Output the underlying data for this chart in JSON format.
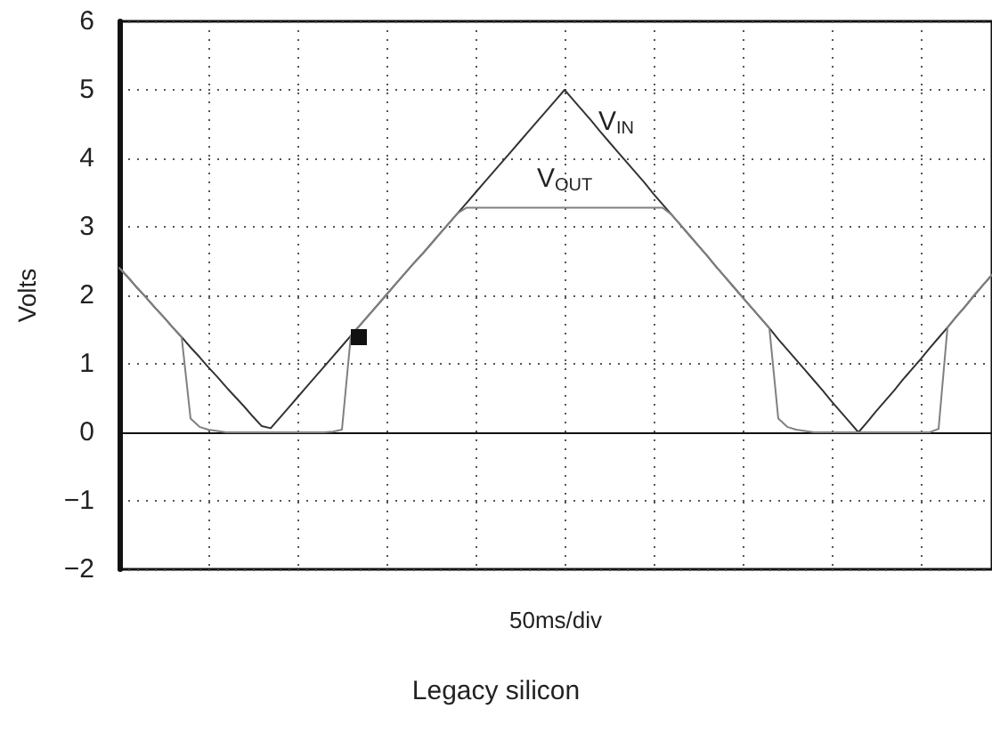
{
  "chart_data": {
    "type": "line",
    "title": "Legacy silicon",
    "xlabel": "50ms/div",
    "ylabel": "Volts",
    "categories": [
      null,
      null,
      null,
      null,
      null,
      null,
      null,
      null,
      null,
      null,
      null,
      null,
      null,
      null,
      null,
      null,
      null,
      null,
      null,
      null,
      null,
      null,
      null,
      null,
      null,
      null,
      null,
      null,
      null,
      null,
      null,
      null,
      null,
      null,
      null,
      null,
      null,
      null,
      null,
      null,
      null,
      null,
      null,
      null,
      null,
      null,
      null,
      null,
      null,
      null,
      null,
      null,
      null,
      null,
      null,
      null,
      null,
      null,
      null,
      null,
      null,
      null,
      null,
      null,
      null,
      null,
      null,
      null,
      null,
      null,
      null,
      null,
      null,
      null,
      null,
      null,
      null,
      null,
      null,
      null,
      null,
      null,
      null,
      null,
      null,
      null,
      null,
      null,
      null,
      null,
      null,
      null,
      null,
      null,
      null,
      null,
      null,
      null,
      null
    ],
    "ylim": [
      -2,
      6
    ],
    "yticks": [
      {
        "value": -2,
        "label": "−2"
      },
      {
        "value": -1,
        "label": "−1"
      },
      0,
      1,
      2,
      3,
      4,
      5,
      6
    ],
    "grid": true,
    "tick_labels": "y",
    "marker": "none",
    "line_style": "solid",
    "series": [
      {
        "name": "V$_{IN}$",
        "color": "#333333",
        "values": [
          2.4,
          2.26,
          2.11,
          1.97,
          1.82,
          1.68,
          1.53,
          1.39,
          1.24,
          1.1,
          0.95,
          0.81,
          0.66,
          0.52,
          0.38,
          0.23,
          0.09,
          0.06,
          0.21,
          0.36,
          0.51,
          0.66,
          0.81,
          0.96,
          1.11,
          1.26,
          1.41,
          1.56,
          1.71,
          1.86,
          2.01,
          2.16,
          2.31,
          2.46,
          2.6,
          2.75,
          2.9,
          3.05,
          3.2,
          3.35,
          3.5,
          3.65,
          3.8,
          3.95,
          4.1,
          4.25,
          4.4,
          4.55,
          4.7,
          4.85,
          5,
          4.85,
          4.7,
          4.55,
          4.39,
          4.24,
          4.09,
          3.94,
          3.79,
          3.64,
          3.48,
          3.33,
          3.18,
          3.03,
          2.88,
          2.73,
          2.58,
          2.42,
          2.27,
          2.12,
          1.97,
          1.82,
          1.67,
          1.52,
          1.36,
          1.21,
          1.06,
          0.91,
          0.76,
          0.61,
          0.45,
          0.3,
          0.15,
          0,
          0.15,
          0.31,
          0.46,
          0.61,
          0.77,
          0.92,
          1.07,
          1.23,
          1.38,
          1.53,
          1.69,
          1.84,
          2,
          2.15,
          2.3
        ]
      },
      {
        "name": "V$_{OUT}$",
        "color": "#808080",
        "values": [
          2.4,
          2.26,
          2.11,
          1.97,
          1.82,
          1.68,
          1.53,
          1.39,
          0.2,
          0.08,
          0.04,
          0.02,
          0,
          0,
          0,
          0,
          0,
          0,
          0,
          0,
          0,
          0,
          0,
          0,
          0.01,
          0.04,
          1.41,
          1.56,
          1.71,
          1.86,
          2.01,
          2.16,
          2.31,
          2.46,
          2.6,
          2.75,
          2.9,
          3.05,
          3.2,
          3.28,
          3.28,
          3.28,
          3.28,
          3.28,
          3.28,
          3.28,
          3.28,
          3.28,
          3.28,
          3.28,
          3.28,
          3.28,
          3.28,
          3.28,
          3.28,
          3.28,
          3.28,
          3.28,
          3.28,
          3.28,
          3.28,
          3.28,
          3.18,
          3.03,
          2.88,
          2.73,
          2.58,
          2.42,
          2.27,
          2.12,
          1.97,
          1.82,
          1.67,
          1.52,
          0.2,
          0.08,
          0.04,
          0.02,
          0,
          0,
          0,
          0,
          0,
          0,
          0,
          0,
          0,
          0,
          0,
          0,
          0,
          0,
          0.05,
          1.53,
          1.69,
          1.84,
          2,
          2.15,
          2.3
        ]
      }
    ]
  }
}
